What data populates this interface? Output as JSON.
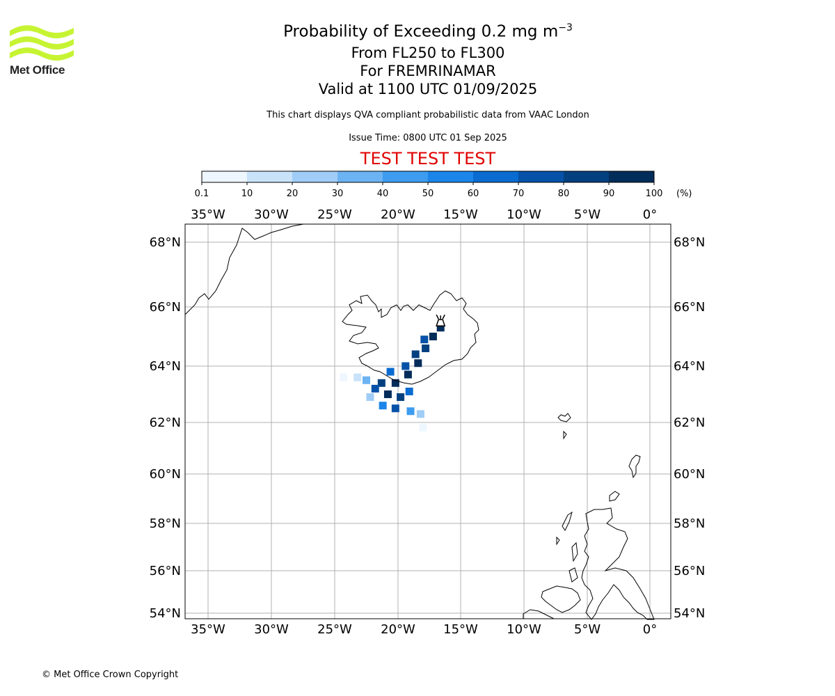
{
  "logo": {
    "text": "Met Office",
    "brand_color": "#c6f432"
  },
  "header": {
    "title_prefix": "Probability of Exceeding 0.2 mg m",
    "title_superscript": "−3",
    "flight_levels": "From FL250 to FL300",
    "volcano": "For FREMRINAMAR",
    "valid_time": "Valid at 1100 UTC 01/09/2025",
    "description": "This chart displays QVA compliant probabilistic data from VAAC London",
    "issue_time": "Issue Time: 0800 UTC 01 Sep 2025",
    "test_banner": "TEST TEST TEST",
    "test_color": "#e00000"
  },
  "colorbar": {
    "unit": "(%)",
    "ticks": [
      "0.1",
      "10",
      "20",
      "30",
      "40",
      "50",
      "60",
      "70",
      "80",
      "90",
      "100"
    ],
    "colors": [
      "#eef6ff",
      "#c8e2fa",
      "#9fcdf7",
      "#6cb3f3",
      "#3d9cf0",
      "#1b85ea",
      "#0a6bd0",
      "#0552a8",
      "#03407f",
      "#022c5a"
    ]
  },
  "map": {
    "lon_range": [
      -36.8,
      1.6
    ],
    "lat_range": [
      53.8,
      68.8
    ],
    "lon_ticks": [
      {
        "value": -35,
        "label": "35°W"
      },
      {
        "value": -30,
        "label": "30°W"
      },
      {
        "value": -25,
        "label": "25°W"
      },
      {
        "value": -20,
        "label": "20°W"
      },
      {
        "value": -15,
        "label": "15°W"
      },
      {
        "value": -10,
        "label": "10°W"
      },
      {
        "value": -5,
        "label": "5°W"
      },
      {
        "value": 0,
        "label": "0°"
      }
    ],
    "lat_ticks": [
      {
        "value": 68,
        "label": "68°N"
      },
      {
        "value": 66,
        "label": "66°N"
      },
      {
        "value": 64,
        "label": "64°N"
      },
      {
        "value": 62,
        "label": "62°N"
      },
      {
        "value": 60,
        "label": "60°N"
      },
      {
        "value": 58,
        "label": "58°N"
      },
      {
        "value": 56,
        "label": "56°N"
      },
      {
        "value": 54,
        "label": "54°N"
      }
    ],
    "gridlines": true,
    "volcano_marker": {
      "lon": -16.6,
      "lat": 65.5,
      "name": "FREMRINAMAR"
    },
    "ash_plume": {
      "description": "probability cells (%) along plume from volcano to south-west of Iceland",
      "cells": [
        {
          "lon": -16.6,
          "lat": 65.3,
          "p": 95
        },
        {
          "lon": -17.2,
          "lat": 65.0,
          "p": 90
        },
        {
          "lon": -17.9,
          "lat": 64.9,
          "p": 75
        },
        {
          "lon": -17.8,
          "lat": 64.6,
          "p": 85
        },
        {
          "lon": -18.6,
          "lat": 64.4,
          "p": 80
        },
        {
          "lon": -18.4,
          "lat": 64.1,
          "p": 90
        },
        {
          "lon": -19.4,
          "lat": 64.0,
          "p": 70
        },
        {
          "lon": -19.2,
          "lat": 63.7,
          "p": 90
        },
        {
          "lon": -20.6,
          "lat": 63.8,
          "p": 60
        },
        {
          "lon": -20.2,
          "lat": 63.4,
          "p": 95
        },
        {
          "lon": -21.3,
          "lat": 63.4,
          "p": 80
        },
        {
          "lon": -21.8,
          "lat": 63.2,
          "p": 75
        },
        {
          "lon": -20.8,
          "lat": 63.0,
          "p": 90
        },
        {
          "lon": -19.8,
          "lat": 62.9,
          "p": 85
        },
        {
          "lon": -19.1,
          "lat": 63.1,
          "p": 60
        },
        {
          "lon": -20.2,
          "lat": 62.5,
          "p": 70
        },
        {
          "lon": -21.2,
          "lat": 62.6,
          "p": 55
        },
        {
          "lon": -19.0,
          "lat": 62.4,
          "p": 45
        },
        {
          "lon": -22.5,
          "lat": 63.5,
          "p": 30
        },
        {
          "lon": -23.2,
          "lat": 63.6,
          "p": 15
        },
        {
          "lon": -24.3,
          "lat": 63.6,
          "p": 5
        },
        {
          "lon": -22.2,
          "lat": 62.9,
          "p": 25
        },
        {
          "lon": -18.2,
          "lat": 62.3,
          "p": 20
        },
        {
          "lon": -18.0,
          "lat": 61.8,
          "p": 8
        }
      ]
    }
  },
  "footer": {
    "copyright": "© Met Office Crown Copyright"
  }
}
